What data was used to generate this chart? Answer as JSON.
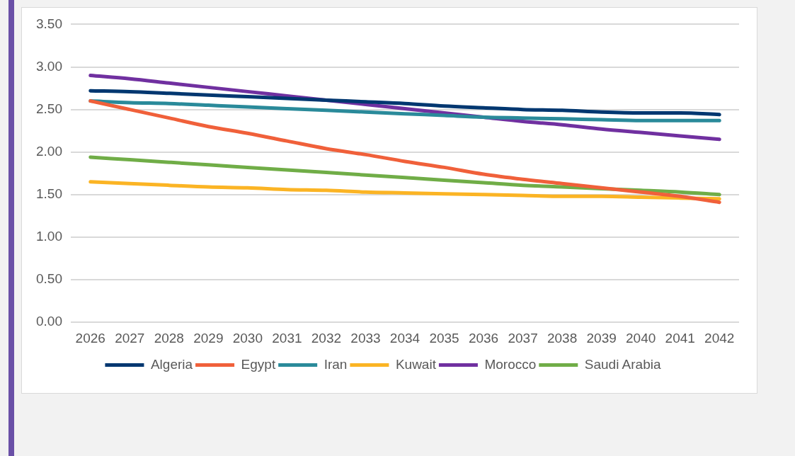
{
  "chart_data": {
    "type": "line",
    "categories": [
      "2026",
      "2027",
      "2028",
      "2029",
      "2030",
      "2031",
      "2032",
      "2033",
      "2034",
      "2035",
      "2036",
      "2037",
      "2038",
      "2039",
      "2040",
      "2041",
      "2042"
    ],
    "series": [
      {
        "name": "Algeria",
        "color": "#003770",
        "values": [
          2.72,
          2.71,
          2.69,
          2.67,
          2.65,
          2.63,
          2.61,
          2.59,
          2.57,
          2.54,
          2.52,
          2.5,
          2.49,
          2.47,
          2.46,
          2.46,
          2.44
        ]
      },
      {
        "name": "Egypt",
        "color": "#f0603a",
        "values": [
          2.6,
          2.5,
          2.4,
          2.3,
          2.22,
          2.13,
          2.04,
          1.97,
          1.89,
          1.82,
          1.74,
          1.68,
          1.63,
          1.58,
          1.53,
          1.48,
          1.41
        ]
      },
      {
        "name": "Iran",
        "color": "#2a8a9a",
        "values": [
          2.6,
          2.58,
          2.57,
          2.55,
          2.53,
          2.51,
          2.49,
          2.47,
          2.45,
          2.43,
          2.41,
          2.4,
          2.39,
          2.38,
          2.37,
          2.37,
          2.37
        ]
      },
      {
        "name": "Kuwait",
        "color": "#fbb424",
        "values": [
          1.65,
          1.63,
          1.61,
          1.59,
          1.58,
          1.56,
          1.55,
          1.53,
          1.52,
          1.51,
          1.5,
          1.49,
          1.48,
          1.48,
          1.47,
          1.46,
          1.45
        ]
      },
      {
        "name": "Morocco",
        "color": "#7030a0",
        "values": [
          2.9,
          2.86,
          2.81,
          2.76,
          2.71,
          2.66,
          2.61,
          2.56,
          2.51,
          2.46,
          2.41,
          2.36,
          2.32,
          2.27,
          2.23,
          2.19,
          2.15
        ]
      },
      {
        "name": "Saudi Arabia",
        "color": "#70ad47",
        "values": [
          1.94,
          1.91,
          1.88,
          1.85,
          1.82,
          1.79,
          1.76,
          1.73,
          1.7,
          1.67,
          1.64,
          1.61,
          1.59,
          1.57,
          1.55,
          1.53,
          1.5
        ]
      }
    ],
    "ylim": [
      0,
      3.5
    ],
    "yticks": [
      {
        "value": 0,
        "label": "0.00"
      },
      {
        "value": 0.5,
        "label": "0.50"
      },
      {
        "value": 1,
        "label": "1.00"
      },
      {
        "value": 1.5,
        "label": "1.50"
      },
      {
        "value": 2,
        "label": "2.00"
      },
      {
        "value": 2.5,
        "label": "2.50"
      },
      {
        "value": 3,
        "label": "3.00"
      },
      {
        "value": 3.5,
        "label": "3.50"
      }
    ],
    "grid": "y",
    "legend": "bottom",
    "marker": "none",
    "line_style": "solid"
  }
}
